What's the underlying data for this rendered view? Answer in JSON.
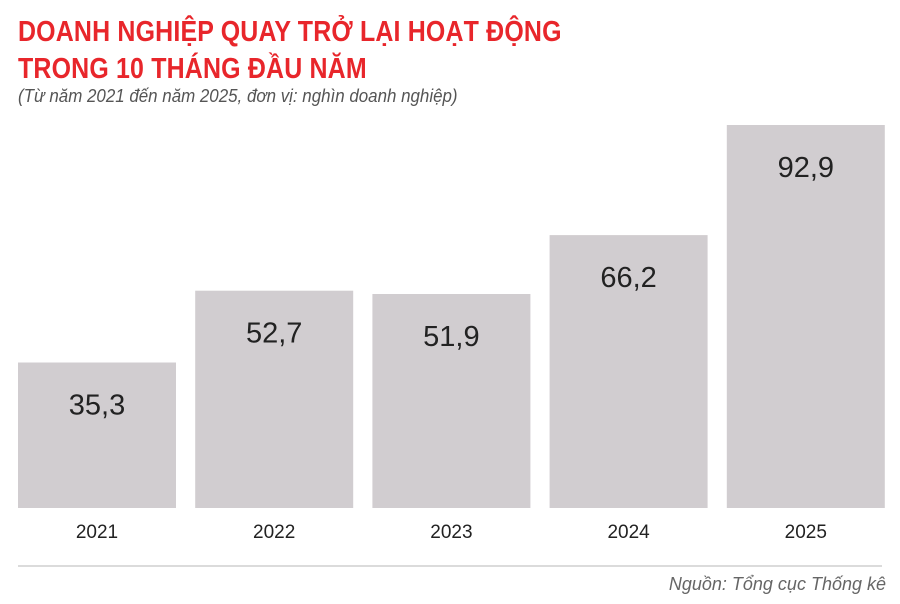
{
  "chart_data": {
    "type": "bar",
    "title_lines": [
      "DOANH NGHIỆP QUAY TRỞ LẠI HOẠT ĐỘNG",
      "TRONG 10 THÁNG ĐẦU NĂM"
    ],
    "subtitle": "(Từ năm 2021 đến năm 2025, đơn vị: nghìn doanh nghiệp)",
    "categories": [
      "2021",
      "2022",
      "2023",
      "2024",
      "2025"
    ],
    "values": [
      35.3,
      52.7,
      51.9,
      66.2,
      92.9
    ],
    "value_labels": [
      "35,3",
      "52,7",
      "51,9",
      "66,2",
      "92,9"
    ],
    "xlabel": "",
    "ylabel": "",
    "ylim": [
      0,
      92.9
    ],
    "grid": false,
    "legend": "none",
    "source": "Nguồn: Tổng cục Thống kê",
    "colors": {
      "title": "#e8262b",
      "bar": "#d1cdd0",
      "text": "#222222"
    }
  }
}
